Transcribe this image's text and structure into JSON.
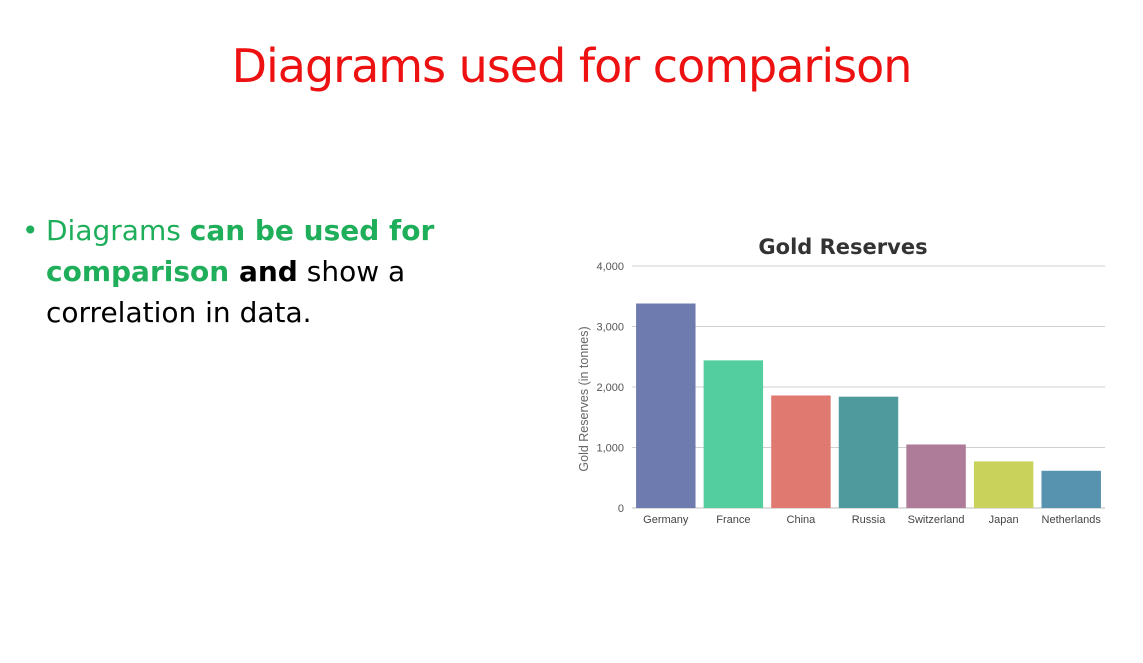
{
  "slide": {
    "title": "Diagrams used for comparison",
    "title_color": "#ee1111",
    "bullet": {
      "marker": "•",
      "part1": "Diagrams ",
      "part2": "can be used for comparison",
      "part3": " and",
      "part4": " show a correlation in data.",
      "accent_color": "#1fae5a"
    }
  },
  "chart_data": {
    "type": "bar",
    "title": "Gold Reserves",
    "xlabel": "",
    "ylabel": "Gold Reserves (in tonnes)",
    "categories": [
      "Germany",
      "France",
      "China",
      "Russia",
      "Switzerland",
      "Japan",
      "Netherlands"
    ],
    "values": [
      3380,
      2440,
      1860,
      1840,
      1050,
      770,
      615
    ],
    "colors": [
      "#6e7bae",
      "#52ce9f",
      "#e07a70",
      "#4e9a9c",
      "#ae7b99",
      "#c9d35b",
      "#5793af"
    ],
    "ylim": [
      0,
      4000
    ],
    "yticks": [
      0,
      1000,
      2000,
      3000,
      4000
    ],
    "ytick_labels": [
      "0",
      "1,000",
      "2,000",
      "3,000",
      "4,000"
    ],
    "grid": true,
    "legend": "none"
  }
}
